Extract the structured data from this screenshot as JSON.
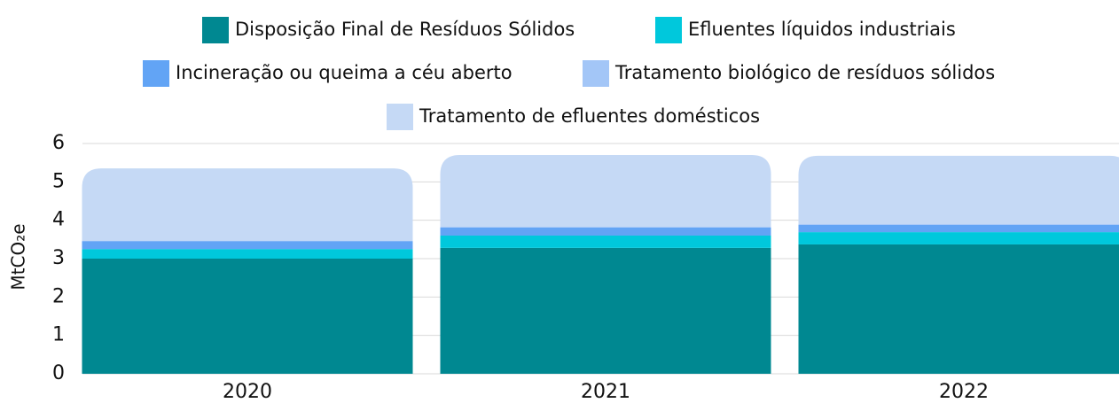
{
  "chart_data": {
    "type": "stacked_bar",
    "y_label": "MtCO₂e",
    "categories": [
      "2020",
      "2021",
      "2022"
    ],
    "series": [
      {
        "name": "Disposição Final de Resíduos Sólidos",
        "color": "#008891",
        "values": [
          3.0,
          3.28,
          3.37
        ]
      },
      {
        "name": "Efluentes líquidos industriais",
        "color": "#00c8dc",
        "values": [
          0.25,
          0.32,
          0.32
        ]
      },
      {
        "name": "Incineração ou queima a céu aberto",
        "color": "#62a4f5",
        "values": [
          0.2,
          0.21,
          0.19
        ]
      },
      {
        "name": "Tratamento biológico de resíduos sólidos",
        "color": "#a3c6f7",
        "values": [
          0.02,
          0.02,
          0.02
        ]
      },
      {
        "name": "Tratamento de efluentes domésticos",
        "color": "#c5d9f5",
        "values": [
          1.88,
          1.87,
          1.78
        ]
      }
    ],
    "ylim": [
      0,
      6
    ],
    "yticks": [
      0,
      1,
      2,
      3,
      4,
      5,
      6
    ],
    "grid": true
  }
}
